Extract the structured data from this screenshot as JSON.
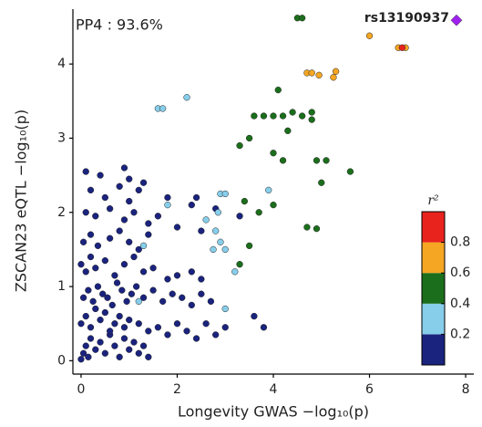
{
  "chart_data": {
    "type": "scatter",
    "annotation": "PP4 : 93.6%",
    "lead_label": "rs13190937",
    "xlabel": "Longevity GWAS −log₁₀(p)",
    "ylabel": "ZSCAN23 eQTL −log₁₀(p)",
    "xlim": [
      -0.17,
      8.17
    ],
    "ylim": [
      -0.18,
      4.74
    ],
    "xticks": [
      0,
      2,
      4,
      6,
      8
    ],
    "yticks": [
      0,
      1,
      2,
      3,
      4
    ],
    "series": [
      {
        "color": "#1a237e",
        "x": [
          0.0,
          0.05,
          0.1,
          0.15,
          0.2,
          0.3,
          0.4,
          0.5,
          0.6,
          0.7,
          0.8,
          0.9,
          1.0,
          1.1,
          1.2,
          1.3,
          1.4,
          0.0,
          0.1,
          0.2,
          0.3,
          0.4,
          0.5,
          0.6,
          0.7,
          0.8,
          0.9,
          1.0,
          1.2,
          1.4,
          1.6,
          1.8,
          2.0,
          2.2,
          2.4,
          2.6,
          2.8,
          3.0,
          0.05,
          0.15,
          0.25,
          0.35,
          0.45,
          0.55,
          0.65,
          0.75,
          0.85,
          0.95,
          1.05,
          1.15,
          1.3,
          1.5,
          1.7,
          1.9,
          2.1,
          2.3,
          2.5,
          2.7,
          0.0,
          0.1,
          0.2,
          0.3,
          0.5,
          0.7,
          0.9,
          1.1,
          1.3,
          1.5,
          1.8,
          2.0,
          2.3,
          2.5,
          0.05,
          0.2,
          0.35,
          0.6,
          0.8,
          1.0,
          1.2,
          1.4,
          0.1,
          0.3,
          0.6,
          0.9,
          1.1,
          1.4,
          1.6,
          2.0,
          2.5,
          0.2,
          0.5,
          0.8,
          1.0,
          1.3,
          0.1,
          0.4,
          0.9,
          1.0,
          1.2,
          1.8,
          2.3,
          2.4,
          2.8,
          3.3,
          3.6,
          3.8
        ],
        "y": [
          0.02,
          0.1,
          0.2,
          0.05,
          0.3,
          0.15,
          0.25,
          0.1,
          0.35,
          0.2,
          0.05,
          0.3,
          0.15,
          0.25,
          0.1,
          0.2,
          0.05,
          0.5,
          0.6,
          0.45,
          0.7,
          0.55,
          0.65,
          0.4,
          0.5,
          0.6,
          0.45,
          0.55,
          0.5,
          0.4,
          0.45,
          0.35,
          0.5,
          0.4,
          0.3,
          0.5,
          0.35,
          0.45,
          0.85,
          0.95,
          0.8,
          1.0,
          0.9,
          0.85,
          0.75,
          1.05,
          0.95,
          0.8,
          0.9,
          1.0,
          0.85,
          0.95,
          0.8,
          0.9,
          0.85,
          0.75,
          0.9,
          0.8,
          1.3,
          1.2,
          1.4,
          1.25,
          1.35,
          1.15,
          1.3,
          1.4,
          1.2,
          1.25,
          1.1,
          1.15,
          1.2,
          1.1,
          1.6,
          1.7,
          1.55,
          1.65,
          1.75,
          1.6,
          1.5,
          1.7,
          2.0,
          1.95,
          2.05,
          1.9,
          2.0,
          1.85,
          1.95,
          1.8,
          1.75,
          2.3,
          2.2,
          2.35,
          2.15,
          2.4,
          2.55,
          2.5,
          2.6,
          2.45,
          2.3,
          2.2,
          2.1,
          2.2,
          2.05,
          1.95,
          0.6,
          0.45
        ]
      },
      {
        "color": "#87ceeb",
        "x": [
          1.6,
          1.7,
          2.2,
          1.3,
          1.8,
          2.6,
          2.9,
          3.0,
          2.85,
          2.8,
          2.9,
          3.0,
          2.75,
          3.9,
          3.2,
          3.0,
          1.2
        ],
        "y": [
          3.4,
          3.4,
          3.55,
          1.55,
          2.1,
          1.9,
          2.25,
          2.25,
          2.0,
          1.75,
          1.6,
          1.5,
          1.5,
          2.3,
          1.2,
          0.7,
          0.8
        ]
      },
      {
        "color": "#1b6e1b",
        "x": [
          4.5,
          4.6,
          3.6,
          3.8,
          4.0,
          4.2,
          4.4,
          4.6,
          4.8,
          4.1,
          3.5,
          4.3,
          3.3,
          4.0,
          4.2,
          4.9,
          5.0,
          5.6,
          3.4,
          3.7,
          4.0,
          4.7,
          4.9,
          3.5,
          3.3,
          4.8,
          5.1
        ],
        "y": [
          4.62,
          4.62,
          3.3,
          3.3,
          3.3,
          3.3,
          3.35,
          3.3,
          3.35,
          3.65,
          3.0,
          3.1,
          2.9,
          2.8,
          2.7,
          2.7,
          2.4,
          2.55,
          2.15,
          2.0,
          2.1,
          1.8,
          1.78,
          1.55,
          1.3,
          3.25,
          2.7
        ]
      },
      {
        "color": "#f5a623",
        "x": [
          4.7,
          4.8,
          4.95,
          5.3,
          5.25,
          6.0,
          6.6,
          6.75
        ],
        "y": [
          3.88,
          3.88,
          3.85,
          3.9,
          3.82,
          4.38,
          4.22,
          4.22
        ]
      },
      {
        "color": "#e8231e",
        "x": [
          6.68
        ],
        "y": [
          4.22
        ]
      },
      {
        "color": "#a020f0",
        "marker": "diamond",
        "x": [
          7.81
        ],
        "y": [
          4.59
        ]
      }
    ],
    "colorbar": {
      "title": "r²",
      "lim": [
        0,
        1
      ],
      "ticks": [
        0.2,
        0.4,
        0.6,
        0.8
      ],
      "bins": [
        0,
        0.2,
        0.4,
        0.6,
        0.8,
        1
      ],
      "colors": [
        "#1a237e",
        "#87ceeb",
        "#1b6e1b",
        "#f5a623",
        "#e8231e"
      ]
    }
  }
}
